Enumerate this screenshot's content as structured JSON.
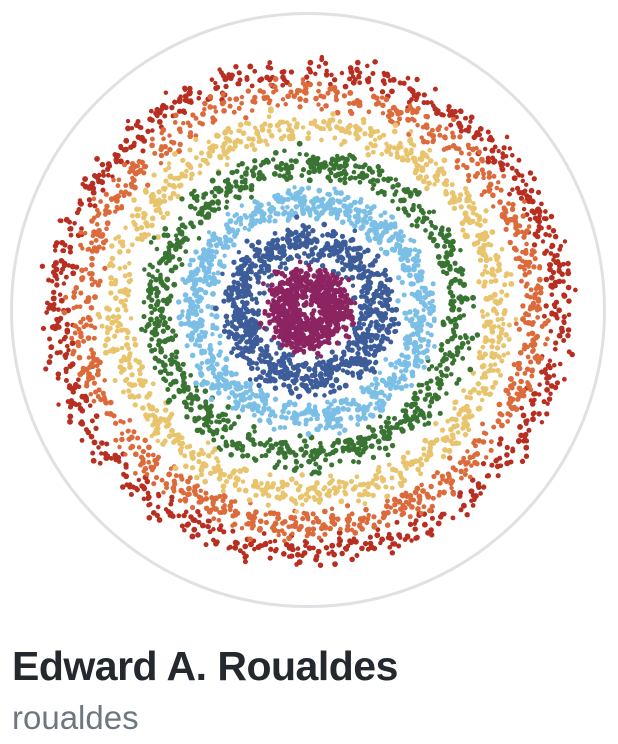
{
  "profile": {
    "full_name": "Edward A. Roualdes",
    "username": "roualdes"
  },
  "avatar": {
    "description_icon": "rainbow-dot-ring-avatar",
    "colors": {
      "ring_border": "#dfe1e4",
      "bands": [
        "#8c2461",
        "#3d5d9a",
        "#7bbfe6",
        "#3a7433",
        "#e8c46d",
        "#dc6a3b",
        "#b82e20"
      ]
    }
  },
  "theme": {
    "name_color": "#24292f",
    "username_color": "#6e7781",
    "background": "#ffffff"
  }
}
